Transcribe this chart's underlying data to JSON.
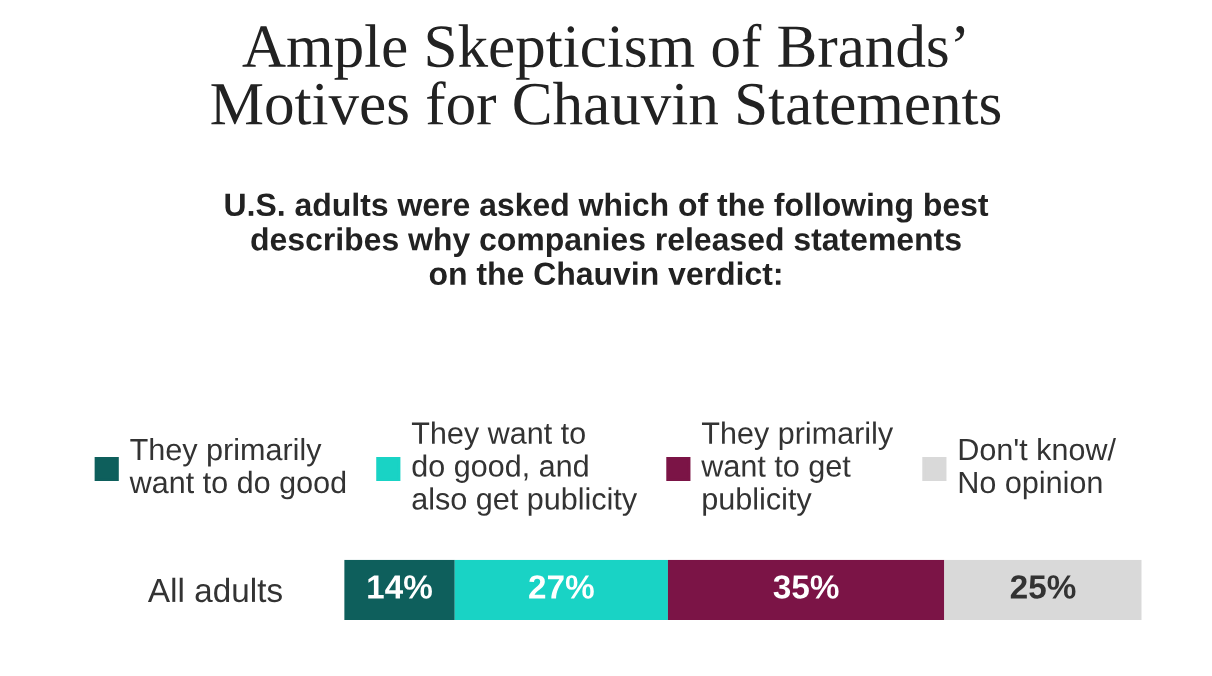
{
  "chart_data": {
    "type": "bar",
    "orientation": "horizontal",
    "stacked": true,
    "title": "Ample Skepticism of Brands’\nMotives for Chauvin Statements",
    "subtitle": "U.S. adults were asked which of the following best\ndescribes why companies released statements\non the Chauvin verdict:",
    "categories": [
      "All adults"
    ],
    "series": [
      {
        "name": "They primarily\nwant to do good",
        "color": "#0e5f5c",
        "values": [
          14
        ],
        "value_labels": [
          "14%"
        ]
      },
      {
        "name": "They want to\ndo good, and\nalso get publicity",
        "color": "#19d3c5",
        "values": [
          27
        ],
        "value_labels": [
          "27%"
        ]
      },
      {
        "name": "They primarily\nwant to get\npublicity",
        "color": "#7b1446",
        "values": [
          35
        ],
        "value_labels": [
          "35%"
        ]
      },
      {
        "name": "Don't know/\nNo opinion",
        "color": "#d9d9d9",
        "values": [
          25
        ],
        "value_labels": [
          "25%"
        ]
      }
    ],
    "legend": "top",
    "grid": false
  }
}
